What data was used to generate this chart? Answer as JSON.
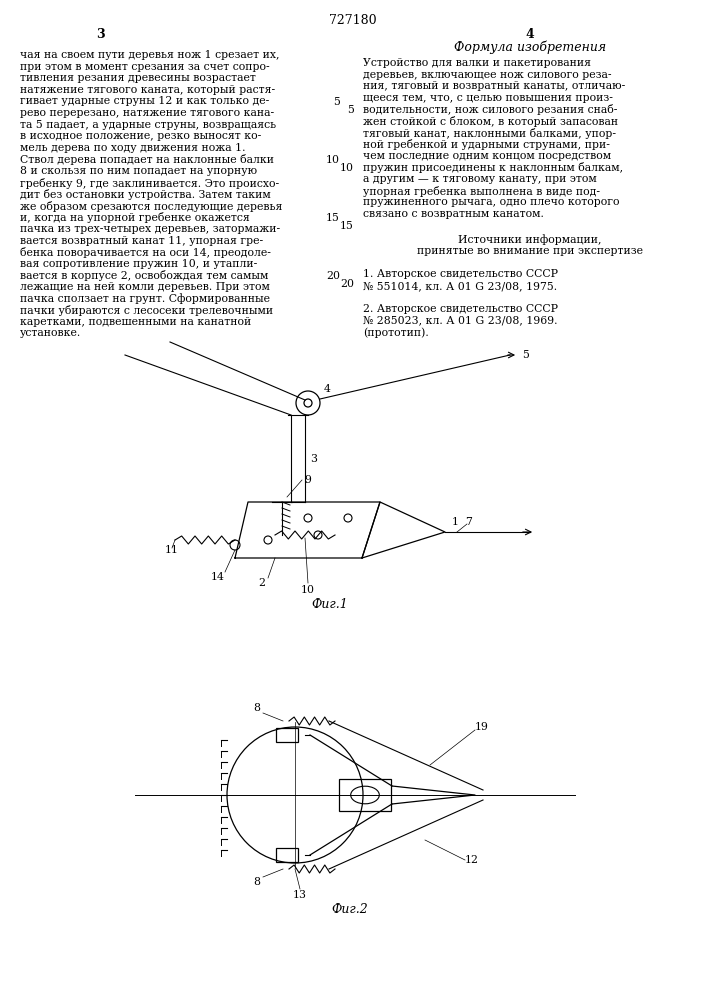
{
  "page_number": "727180",
  "left_col_num": "3",
  "right_col_num": "4",
  "right_title": "Формула изобретения",
  "left_lines": [
    "чая на своем пути деревья нож 1 срезает их,",
    "при этом в момент срезания за счет сопро-",
    "тивления резания древесины возрастает",
    "натяжение тягового каната, который растя-",
    "гивает ударные струны 12 и как только де-",
    "рево перерезано, натяжение тягового кана-",
    "та 5 падает, а ударные струны, возвращаясь",
    "в исходное положение, резко выносят ко-",
    "мель дерева по ходу движения ножа 1.",
    "Ствол дерева попадает на наклонные балки",
    "8 и скользя по ним попадает на упорную",
    "гребенку 9, где заклинивается. Это происхо-",
    "дит без остановки устройства. Затем таким",
    "же образом срезаются последующие деревья",
    "и, когда на упорной гребенке окажется",
    "пачка из трех-четырех деревьев, затормажи-",
    "вается возвратный канат 11, упорная гре-",
    "бенка поворачивается на оси 14, преодоле-",
    "вая сопротивление пружин 10, и утапли-",
    "вается в корпусе 2, освобождая тем самым",
    "лежащие на ней комли деревьев. При этом",
    "пачка сползает на грунт. Сформированные",
    "пачки убираются с лесосеки трелевочными",
    "каретками, подвешенными на канатной",
    "установке."
  ],
  "right_lines": [
    "Устройство для валки и пакетирования",
    "деревьев, включающее нож силового реза-",
    "ния, тяговый и возвратный канаты, отличаю-",
    "щееся тем, что, с целью повышения произ-",
    "водительности, нож силового резания снаб-",
    "жен стойкой с блоком, в который запасован",
    "тяговый канат, наклонными балками, упор-",
    "ной гребенкой и ударными струнами, при-",
    "чем последние одним концом посредством",
    "пружин присоединены к наклонным балкам,",
    "а другим — к тяговому канату, при этом",
    "упорная гребенка выполнена в виде под-",
    "пружиненного рычага, одно плечо которого",
    "связано с возвратным канатом."
  ],
  "src_title1": "Источники информации,",
  "src_title2": "принятые во внимание при экспертизе",
  "src1_l1": "1. Авторское свидетельство СССР",
  "src1_l2": "№ 551014, кл. А 01 G 23/08, 1975.",
  "src2_l1": "2. Авторское свидетельство СССР",
  "src2_l2": "№ 285023, кл. А 01 G 23/08, 1969.",
  "src2_l3": "(прототип).",
  "fig1_caption": "Фиг.1",
  "fig2_caption": "Фиг.2",
  "bg": "#ffffff",
  "ink": "#000000"
}
